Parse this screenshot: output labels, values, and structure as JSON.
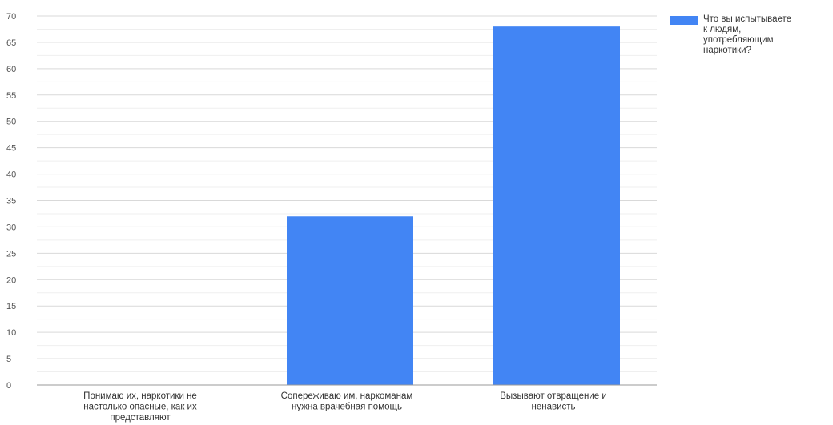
{
  "chart_data": {
    "type": "bar",
    "categories": [
      "Понимаю их, наркотики не настолько опасные, как их представляют",
      "Сопереживаю им, наркоманам нужна врачебная помощь",
      "Вызывают отвращение и ненависть"
    ],
    "category_lines": [
      [
        "Понимаю их, наркотики не",
        "настолько опасные, как их",
        "представляют"
      ],
      [
        "Сопереживаю им, наркоманам",
        "нужна врачебная помощь"
      ],
      [
        "Вызывают отвращение и",
        "ненависть"
      ]
    ],
    "series": [
      {
        "name": "Что вы испытываете к людям, употребляющим наркотики?",
        "values": [
          0,
          32,
          68
        ]
      }
    ],
    "legend_lines": [
      "Что вы испытываете",
      "к людям,",
      "употребляющим",
      "наркотики?"
    ],
    "ylim": [
      0,
      70
    ],
    "ytick_step": 5,
    "yticks": [
      "0",
      "5",
      "10",
      "15",
      "20",
      "25",
      "30",
      "35",
      "40",
      "45",
      "50",
      "55",
      "60",
      "65",
      "70"
    ],
    "grid": true,
    "legend_position": "top-right",
    "bar_color": "#4285f4",
    "title": "",
    "xlabel": "",
    "ylabel": ""
  }
}
